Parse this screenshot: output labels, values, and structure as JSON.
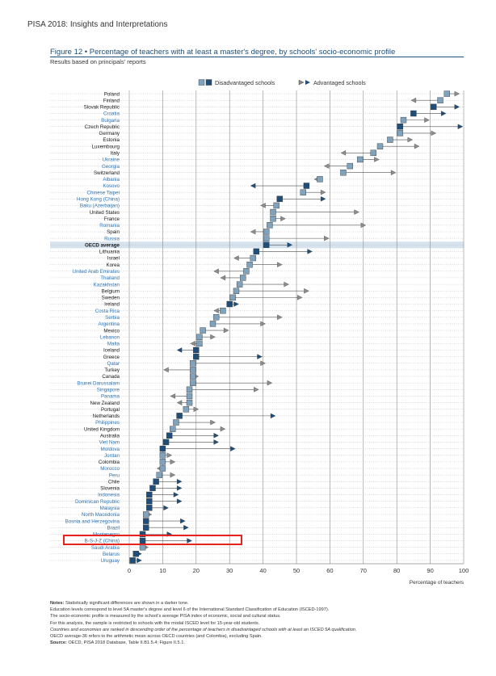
{
  "page": {
    "header": "PISA 2018: Insights and Interpretations",
    "figure_title": "Figure 12 • Percentage of teachers with at least a master's degree, by schools' socio-economic profile",
    "figure_subtitle": "Results based on principals' reports"
  },
  "chart_data": {
    "type": "dot",
    "title": "Percentage of teachers with at least a master's degree, by schools' socio-economic profile",
    "xlabel": "Percentage of teachers",
    "xlim": [
      0,
      100
    ],
    "xticks": [
      0,
      10,
      20,
      30,
      40,
      50,
      60,
      70,
      80,
      90,
      100
    ],
    "grid": true,
    "legend": {
      "position": "top",
      "entries": [
        "Disadvantaged schools",
        "Advantaged schools"
      ]
    },
    "colors": {
      "disadvantaged_significant": "#1f4e79",
      "disadvantaged_nonsignificant": "#7fa3bd",
      "advantaged": "#1f4e79",
      "oecd_band": "#d6e3ef",
      "blue_label": "#2e75b6",
      "highlight": "#e8231f"
    },
    "countries": [
      {
        "name": "Poland",
        "disadvantaged": 95,
        "advantaged": 98,
        "significant": false,
        "label_style": "black"
      },
      {
        "name": "Finland",
        "disadvantaged": 93,
        "advantaged": 85,
        "significant": false,
        "label_style": "black"
      },
      {
        "name": "Slovak Republic",
        "disadvantaged": 91,
        "advantaged": 98,
        "significant": true,
        "label_style": "black"
      },
      {
        "name": "Croatia",
        "disadvantaged": 85,
        "advantaged": 94,
        "significant": true,
        "label_style": "blue"
      },
      {
        "name": "Bulgaria",
        "disadvantaged": 82,
        "advantaged": 89,
        "significant": false,
        "label_style": "blue"
      },
      {
        "name": "Czech Republic",
        "disadvantaged": 81,
        "advantaged": 99,
        "significant": true,
        "label_style": "black"
      },
      {
        "name": "Germany",
        "disadvantaged": 81,
        "advantaged": 91,
        "significant": false,
        "label_style": "black"
      },
      {
        "name": "Estonia",
        "disadvantaged": 78,
        "advantaged": 84,
        "significant": false,
        "label_style": "black"
      },
      {
        "name": "Luxembourg",
        "disadvantaged": 75,
        "advantaged": 86,
        "significant": false,
        "label_style": "black"
      },
      {
        "name": "Italy",
        "disadvantaged": 73,
        "advantaged": 64,
        "significant": false,
        "label_style": "black"
      },
      {
        "name": "Ukraine",
        "disadvantaged": 69,
        "advantaged": 74,
        "significant": false,
        "label_style": "blue"
      },
      {
        "name": "Georgia",
        "disadvantaged": 66,
        "advantaged": 59,
        "significant": false,
        "label_style": "blue"
      },
      {
        "name": "Switzerland",
        "disadvantaged": 64,
        "advantaged": 79,
        "significant": false,
        "label_style": "black"
      },
      {
        "name": "Albania",
        "disadvantaged": 57,
        "advantaged": 56,
        "significant": false,
        "label_style": "blue"
      },
      {
        "name": "Kosovo",
        "disadvantaged": 53,
        "advantaged": 37,
        "significant": true,
        "label_style": "blue"
      },
      {
        "name": "Chinese Taipei",
        "disadvantaged": 52,
        "advantaged": 58,
        "significant": false,
        "label_style": "blue"
      },
      {
        "name": "Hong Kong (China)",
        "disadvantaged": 45,
        "advantaged": 58,
        "significant": true,
        "label_style": "blue"
      },
      {
        "name": "Baku (Azerbaijan)",
        "disadvantaged": 44,
        "advantaged": 40,
        "significant": false,
        "label_style": "blue"
      },
      {
        "name": "United States",
        "disadvantaged": 43,
        "advantaged": 68,
        "significant": false,
        "label_style": "black"
      },
      {
        "name": "France",
        "disadvantaged": 43,
        "advantaged": 46,
        "significant": false,
        "label_style": "black"
      },
      {
        "name": "Romania",
        "disadvantaged": 42,
        "advantaged": 70,
        "significant": false,
        "label_style": "blue"
      },
      {
        "name": "Spain",
        "disadvantaged": 41,
        "advantaged": 37,
        "significant": false,
        "label_style": "black"
      },
      {
        "name": "Russia",
        "disadvantaged": 41,
        "advantaged": 59,
        "significant": false,
        "label_style": "blue"
      },
      {
        "name": "OECD average",
        "disadvantaged": 41,
        "advantaged": 48,
        "significant": true,
        "label_style": "oecd"
      },
      {
        "name": "Lithuania",
        "disadvantaged": 38,
        "advantaged": 54,
        "significant": true,
        "label_style": "black"
      },
      {
        "name": "Israel",
        "disadvantaged": 37,
        "advantaged": 32,
        "significant": false,
        "label_style": "black"
      },
      {
        "name": "Korea",
        "disadvantaged": 36,
        "advantaged": 45,
        "significant": false,
        "label_style": "black"
      },
      {
        "name": "United Arab Emirates",
        "disadvantaged": 35,
        "advantaged": 26,
        "significant": false,
        "label_style": "blue"
      },
      {
        "name": "Thailand",
        "disadvantaged": 34,
        "advantaged": 28,
        "significant": false,
        "label_style": "blue"
      },
      {
        "name": "Kazakhstan",
        "disadvantaged": 33,
        "advantaged": 47,
        "significant": false,
        "label_style": "blue"
      },
      {
        "name": "Belgium",
        "disadvantaged": 32,
        "advantaged": 53,
        "significant": false,
        "label_style": "black"
      },
      {
        "name": "Sweden",
        "disadvantaged": 31,
        "advantaged": 51,
        "significant": false,
        "label_style": "black"
      },
      {
        "name": "Ireland",
        "disadvantaged": 30,
        "advantaged": 32,
        "significant": true,
        "label_style": "black"
      },
      {
        "name": "Costa Rica",
        "disadvantaged": 28,
        "advantaged": 26,
        "significant": false,
        "label_style": "blue"
      },
      {
        "name": "Serbia",
        "disadvantaged": 26,
        "advantaged": 45,
        "significant": false,
        "label_style": "blue"
      },
      {
        "name": "Argentina",
        "disadvantaged": 25,
        "advantaged": 40,
        "significant": false,
        "label_style": "blue"
      },
      {
        "name": "Mexico",
        "disadvantaged": 22,
        "advantaged": 29,
        "significant": false,
        "label_style": "black"
      },
      {
        "name": "Lebanon",
        "disadvantaged": 21,
        "advantaged": 25,
        "significant": false,
        "label_style": "blue"
      },
      {
        "name": "Malta",
        "disadvantaged": 21,
        "advantaged": 19,
        "significant": false,
        "label_style": "blue"
      },
      {
        "name": "Iceland",
        "disadvantaged": 20,
        "advantaged": 15,
        "significant": true,
        "label_style": "black"
      },
      {
        "name": "Greece",
        "disadvantaged": 20,
        "advantaged": 39,
        "significant": true,
        "label_style": "black"
      },
      {
        "name": "Qatar",
        "disadvantaged": 19,
        "advantaged": 40,
        "significant": false,
        "label_style": "blue"
      },
      {
        "name": "Turkey",
        "disadvantaged": 19,
        "advantaged": 11,
        "significant": false,
        "label_style": "black"
      },
      {
        "name": "Canada",
        "disadvantaged": 19,
        "advantaged": 20,
        "significant": false,
        "label_style": "black"
      },
      {
        "name": "Brunei Darussalam",
        "disadvantaged": 19,
        "advantaged": 42,
        "significant": false,
        "label_style": "blue"
      },
      {
        "name": "Singapore",
        "disadvantaged": 18,
        "advantaged": 38,
        "significant": false,
        "label_style": "blue"
      },
      {
        "name": "Panama",
        "disadvantaged": 18,
        "advantaged": 13,
        "significant": false,
        "label_style": "blue"
      },
      {
        "name": "New Zealand",
        "disadvantaged": 18,
        "advantaged": 15,
        "significant": false,
        "label_style": "black"
      },
      {
        "name": "Portugal",
        "disadvantaged": 17,
        "advantaged": 20,
        "significant": false,
        "label_style": "black"
      },
      {
        "name": "Netherlands",
        "disadvantaged": 15,
        "advantaged": 43,
        "significant": true,
        "label_style": "black"
      },
      {
        "name": "Philippines",
        "disadvantaged": 14,
        "advantaged": 25,
        "significant": false,
        "label_style": "blue"
      },
      {
        "name": "United Kingdom",
        "disadvantaged": 13,
        "advantaged": 28,
        "significant": false,
        "label_style": "black"
      },
      {
        "name": "Australia",
        "disadvantaged": 12,
        "advantaged": 26,
        "significant": true,
        "label_style": "black"
      },
      {
        "name": "Viet Nam",
        "disadvantaged": 11,
        "advantaged": 26,
        "significant": true,
        "label_style": "blue"
      },
      {
        "name": "Moldova",
        "disadvantaged": 10,
        "advantaged": 31,
        "significant": true,
        "label_style": "blue"
      },
      {
        "name": "Jordan",
        "disadvantaged": 10,
        "advantaged": 12,
        "significant": false,
        "label_style": "blue"
      },
      {
        "name": "Colombia",
        "disadvantaged": 10,
        "advantaged": 13,
        "significant": false,
        "label_style": "black"
      },
      {
        "name": "Morocco",
        "disadvantaged": 10,
        "advantaged": 9,
        "significant": false,
        "label_style": "blue"
      },
      {
        "name": "Peru",
        "disadvantaged": 9,
        "advantaged": 13,
        "significant": false,
        "label_style": "blue"
      },
      {
        "name": "Chile",
        "disadvantaged": 8,
        "advantaged": 15,
        "significant": true,
        "label_style": "black"
      },
      {
        "name": "Slovenia",
        "disadvantaged": 7,
        "advantaged": 15,
        "significant": true,
        "label_style": "black"
      },
      {
        "name": "Indonesia",
        "disadvantaged": 6,
        "advantaged": 14,
        "significant": true,
        "label_style": "blue"
      },
      {
        "name": "Dominican Republic",
        "disadvantaged": 6,
        "advantaged": 15,
        "significant": true,
        "label_style": "blue"
      },
      {
        "name": "Malaysia",
        "disadvantaged": 6,
        "advantaged": 11,
        "significant": true,
        "label_style": "blue"
      },
      {
        "name": "North Macedonia",
        "disadvantaged": 5,
        "advantaged": 6,
        "significant": false,
        "label_style": "blue"
      },
      {
        "name": "Bosnia and Herzegovina",
        "disadvantaged": 5,
        "advantaged": 16,
        "significant": true,
        "label_style": "blue"
      },
      {
        "name": "Brazil",
        "disadvantaged": 5,
        "advantaged": 17,
        "significant": true,
        "label_style": "blue"
      },
      {
        "name": "Montenegro",
        "disadvantaged": 4,
        "advantaged": 12,
        "significant": true,
        "label_style": "blue"
      },
      {
        "name": "B-S-J-Z (China)",
        "disadvantaged": 4,
        "advantaged": 18,
        "significant": true,
        "label_style": "blue"
      },
      {
        "name": "Saudi Arabia",
        "disadvantaged": 4,
        "advantaged": 5,
        "significant": false,
        "label_style": "blue"
      },
      {
        "name": "Belarus",
        "disadvantaged": 2,
        "advantaged": 3,
        "significant": true,
        "label_style": "blue"
      },
      {
        "name": "Uruguay",
        "disadvantaged": 1,
        "advantaged": 3,
        "significant": true,
        "label_style": "blue"
      }
    ],
    "highlighted_country": "B-S-J-Z (China)"
  },
  "notes": {
    "notes_label": "Notes:",
    "line1": "Statistically significant differences are shown in a darker tone.",
    "line2": "Education levels correspond to level 5A master's degree and level 6 of the International Standard Classification of Education (ISCED-1997).",
    "line3": "The socio-economic profile is measured by the school's average PISA index of economic, social and cultural status.",
    "line4": "For this analysis, the sample is restricted to schools with the modal ISCED level for 15-year-old students.",
    "line5": "Countries and economies are ranked in descending order of the percentage of teachers in disadvantaged schools with at least an ISCED 5A qualification.",
    "line6": "OECD average-36 refers to the arithmetic mean across OECD countries (and Colombia), excluding Spain.",
    "source_label": "Source:",
    "source_text": "OECD, PISA 2018 Database, Table II.B1.5.4; Figure II.5.1."
  }
}
